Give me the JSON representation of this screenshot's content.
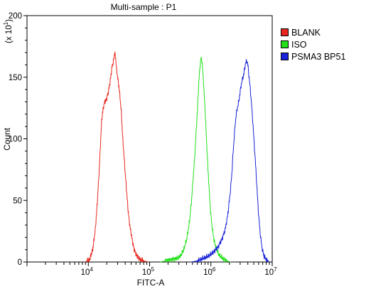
{
  "chart_data": {
    "type": "histogram",
    "title": "Multi-sample : P1",
    "xlabel": "FITC-A",
    "ylabel": "Count",
    "y_multiplier_label": "(x 10",
    "y_multiplier_exp": "1",
    "x_scale": "log",
    "xlim": [
      1000,
      10000000
    ],
    "ylim": [
      0,
      200
    ],
    "x_tick_labels": [
      {
        "base": "10",
        "exp": "4",
        "value": 10000
      },
      {
        "base": "10",
        "exp": "5",
        "value": 100000
      },
      {
        "base": "10",
        "exp": "6",
        "value": 1000000
      },
      {
        "base": "10",
        "exp": "7",
        "value": 10000000
      }
    ],
    "y_ticks": [
      0,
      50,
      100,
      150,
      200
    ],
    "grid": false,
    "legend_position": "right",
    "series": [
      {
        "name": "BLANK",
        "color": "#e8281e",
        "points": [
          [
            8800,
            0
          ],
          [
            10500,
            2
          ],
          [
            11800,
            10
          ],
          [
            13000,
            26
          ],
          [
            14000,
            48
          ],
          [
            15000,
            73
          ],
          [
            15800,
            95
          ],
          [
            16500,
            115
          ],
          [
            17500,
            125
          ],
          [
            18500,
            130
          ],
          [
            19500,
            131
          ],
          [
            21000,
            137
          ],
          [
            22500,
            145
          ],
          [
            23500,
            152
          ],
          [
            24500,
            159
          ],
          [
            25500,
            162
          ],
          [
            26200,
            166
          ],
          [
            26800,
            170
          ],
          [
            27500,
            168
          ],
          [
            28300,
            163
          ],
          [
            29000,
            155
          ],
          [
            30000,
            151
          ],
          [
            31000,
            145
          ],
          [
            32000,
            140
          ],
          [
            33000,
            133
          ],
          [
            34500,
            122
          ],
          [
            36000,
            105
          ],
          [
            38000,
            88
          ],
          [
            40000,
            72
          ],
          [
            42500,
            55
          ],
          [
            45000,
            40
          ],
          [
            48000,
            28
          ],
          [
            52000,
            18
          ],
          [
            56000,
            10
          ],
          [
            62000,
            5
          ],
          [
            70000,
            2
          ],
          [
            80000,
            1
          ],
          [
            95000,
            0
          ]
        ]
      },
      {
        "name": "ISO",
        "color": "#22e01a",
        "points": [
          [
            150000,
            0
          ],
          [
            180000,
            1
          ],
          [
            230000,
            2
          ],
          [
            280000,
            3
          ],
          [
            320000,
            5
          ],
          [
            360000,
            10
          ],
          [
            400000,
            18
          ],
          [
            440000,
            30
          ],
          [
            480000,
            48
          ],
          [
            510000,
            66
          ],
          [
            545000,
            86
          ],
          [
            575000,
            106
          ],
          [
            605000,
            125
          ],
          [
            630000,
            143
          ],
          [
            660000,
            158
          ],
          [
            690000,
            166
          ],
          [
            715000,
            163
          ],
          [
            745000,
            152
          ],
          [
            775000,
            138
          ],
          [
            810000,
            120
          ],
          [
            850000,
            98
          ],
          [
            890000,
            78
          ],
          [
            940000,
            58
          ],
          [
            990000,
            40
          ],
          [
            1050000,
            28
          ],
          [
            1120000,
            18
          ],
          [
            1220000,
            11
          ],
          [
            1350000,
            6
          ],
          [
            1550000,
            3
          ],
          [
            1800000,
            1
          ],
          [
            2100000,
            0
          ]
        ]
      },
      {
        "name": "PSMA3 BP51",
        "color": "#1a23d8",
        "points": [
          [
            480000,
            0
          ],
          [
            600000,
            1
          ],
          [
            750000,
            3
          ],
          [
            920000,
            5
          ],
          [
            1100000,
            8
          ],
          [
            1300000,
            12
          ],
          [
            1500000,
            18
          ],
          [
            1700000,
            26
          ],
          [
            1880000,
            38
          ],
          [
            2050000,
            55
          ],
          [
            2180000,
            70
          ],
          [
            2300000,
            88
          ],
          [
            2430000,
            105
          ],
          [
            2560000,
            118
          ],
          [
            2700000,
            125
          ],
          [
            2850000,
            130
          ],
          [
            3000000,
            138
          ],
          [
            3150000,
            145
          ],
          [
            3350000,
            150
          ],
          [
            3500000,
            155
          ],
          [
            3700000,
            162
          ],
          [
            3900000,
            163
          ],
          [
            4050000,
            158
          ],
          [
            4200000,
            150
          ],
          [
            4400000,
            140
          ],
          [
            4600000,
            128
          ],
          [
            4850000,
            112
          ],
          [
            5100000,
            95
          ],
          [
            5400000,
            76
          ],
          [
            5700000,
            56
          ],
          [
            6000000,
            38
          ],
          [
            6400000,
            22
          ],
          [
            6800000,
            12
          ],
          [
            7300000,
            5
          ],
          [
            8000000,
            2
          ],
          [
            9000000,
            0
          ]
        ]
      }
    ]
  }
}
